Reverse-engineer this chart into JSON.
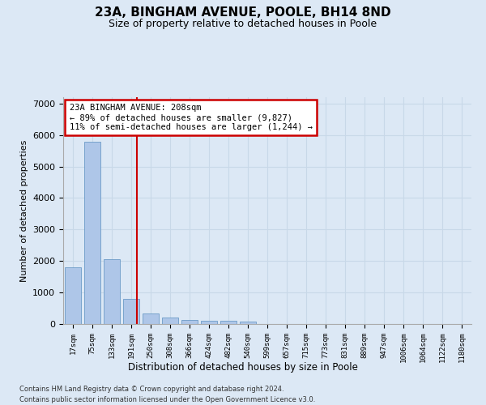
{
  "title": "23A, BINGHAM AVENUE, POOLE, BH14 8ND",
  "subtitle": "Size of property relative to detached houses in Poole",
  "xlabel": "Distribution of detached houses by size in Poole",
  "ylabel": "Number of detached properties",
  "footer_line1": "Contains HM Land Registry data © Crown copyright and database right 2024.",
  "footer_line2": "Contains public sector information licensed under the Open Government Licence v3.0.",
  "bin_labels": [
    "17sqm",
    "75sqm",
    "133sqm",
    "191sqm",
    "250sqm",
    "308sqm",
    "366sqm",
    "424sqm",
    "482sqm",
    "540sqm",
    "599sqm",
    "657sqm",
    "715sqm",
    "773sqm",
    "831sqm",
    "889sqm",
    "947sqm",
    "1006sqm",
    "1064sqm",
    "1122sqm",
    "1180sqm"
  ],
  "bar_values": [
    1790,
    5780,
    2070,
    810,
    340,
    195,
    130,
    110,
    95,
    70,
    0,
    0,
    0,
    0,
    0,
    0,
    0,
    0,
    0,
    0,
    0
  ],
  "bar_color": "#aec6e8",
  "bar_edge_color": "#5a8fc0",
  "grid_color": "#c8d8e8",
  "vline_color": "#cc0000",
  "annotation_text": "23A BINGHAM AVENUE: 208sqm\n← 89% of detached houses are smaller (9,827)\n11% of semi-detached houses are larger (1,244) →",
  "annotation_box_color": "#cc0000",
  "annotation_bg": "white",
  "ylim": [
    0,
    7200
  ],
  "yticks": [
    0,
    1000,
    2000,
    3000,
    4000,
    5000,
    6000,
    7000
  ],
  "background_color": "#dce8f5",
  "plot_bg_color": "#dce8f5"
}
